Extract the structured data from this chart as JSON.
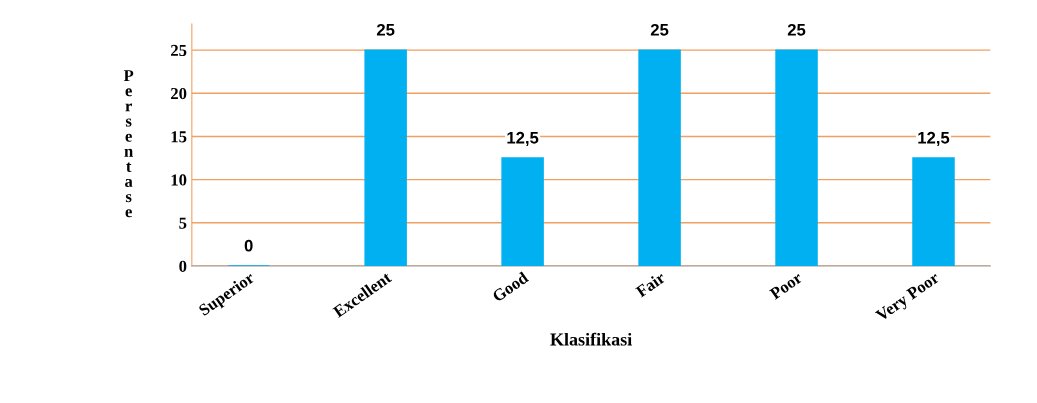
{
  "chart_data": {
    "type": "bar",
    "xlabel": "Klasifikasi",
    "ylabel": "Persentase",
    "categories": [
      "Superior",
      "Excellent",
      "Good",
      "Fair",
      "Poor",
      "Very Poor"
    ],
    "values": [
      0,
      25,
      12.5,
      25,
      25,
      12.5
    ],
    "value_labels": [
      "0",
      "25",
      "12,5",
      "25",
      "25",
      "12,5"
    ],
    "color": "#00b0f0",
    "ylim": [
      0,
      28
    ],
    "yticks": [
      0,
      5,
      10,
      15,
      20,
      25
    ],
    "grid": "y"
  }
}
